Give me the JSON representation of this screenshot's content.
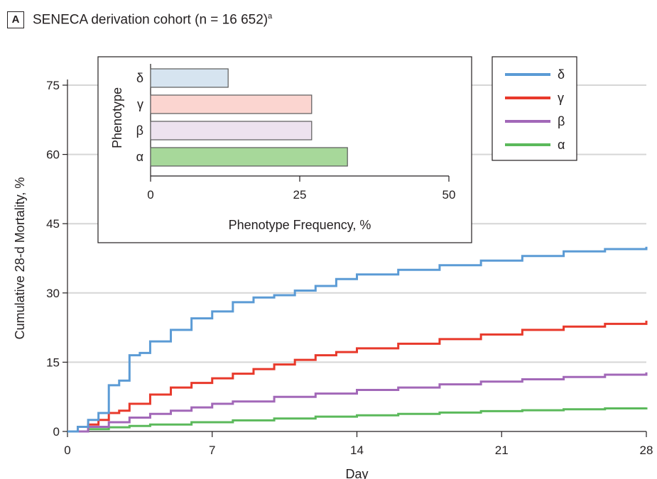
{
  "panel": {
    "letter": "A",
    "title": "SENECA derivation cohort (n = 16 652)",
    "title_sup": "a"
  },
  "chart_data": [
    {
      "type": "line",
      "title": "SENECA derivation cohort (n = 16 652)",
      "xlabel": "Day",
      "ylabel": "Cumulative 28-d Mortality, %",
      "xlim": [
        0,
        28
      ],
      "ylim": [
        0,
        75
      ],
      "xticks": [
        "0",
        "7",
        "14",
        "21",
        "28"
      ],
      "yticks": [
        "0",
        "15",
        "30",
        "45",
        "60",
        "75"
      ],
      "grid": "horizontal",
      "legend_position": "top-right",
      "series": [
        {
          "name": "δ",
          "color": "#5b9bd5",
          "x": [
            0,
            0.5,
            1,
            1.5,
            2,
            2.5,
            3,
            3.5,
            4,
            5,
            6,
            7,
            8,
            9,
            10,
            11,
            12,
            13,
            14,
            16,
            18,
            20,
            22,
            24,
            26,
            28
          ],
          "y": [
            0,
            1,
            2.5,
            4,
            10,
            11,
            16.5,
            17,
            19.5,
            22,
            24.5,
            26,
            28,
            29,
            29.5,
            30.5,
            31.5,
            33,
            34,
            35,
            36,
            37,
            38,
            39,
            39.5,
            40
          ]
        },
        {
          "name": "γ",
          "color": "#e8392b",
          "x": [
            0,
            0.5,
            1,
            1.5,
            2,
            2.5,
            3,
            4,
            5,
            6,
            7,
            8,
            9,
            10,
            11,
            12,
            13,
            14,
            16,
            18,
            20,
            22,
            24,
            26,
            28
          ],
          "y": [
            0,
            1,
            1.5,
            2.5,
            4,
            4.5,
            6,
            8,
            9.5,
            10.5,
            11.5,
            12.5,
            13.5,
            14.5,
            15.5,
            16.5,
            17.2,
            18,
            19,
            20,
            21,
            22,
            22.7,
            23.3,
            24
          ]
        },
        {
          "name": "β",
          "color": "#a268b8",
          "x": [
            0,
            1,
            2,
            3,
            4,
            5,
            6,
            7,
            8,
            10,
            12,
            14,
            16,
            18,
            20,
            22,
            24,
            26,
            28
          ],
          "y": [
            0,
            1,
            2,
            3,
            3.8,
            4.5,
            5.2,
            6,
            6.5,
            7.5,
            8.2,
            9,
            9.5,
            10.2,
            10.8,
            11.3,
            11.8,
            12.3,
            12.8
          ]
        },
        {
          "name": "α",
          "color": "#5bb95b",
          "x": [
            0,
            1,
            2,
            3,
            4,
            6,
            8,
            10,
            12,
            14,
            16,
            18,
            20,
            22,
            24,
            26,
            28
          ],
          "y": [
            0,
            0.5,
            0.9,
            1.2,
            1.5,
            2,
            2.4,
            2.8,
            3.2,
            3.5,
            3.8,
            4.1,
            4.4,
            4.6,
            4.8,
            5,
            5.2
          ]
        }
      ]
    },
    {
      "type": "bar",
      "orientation": "horizontal",
      "xlabel": "Phenotype Frequency, %",
      "ylabel": "Phenotype",
      "xlim": [
        0,
        50
      ],
      "xticks": [
        "0",
        "25",
        "50"
      ],
      "categories": [
        "δ",
        "γ",
        "β",
        "α"
      ],
      "values": [
        13,
        27,
        27,
        33
      ],
      "colors": [
        "#d6e4f0",
        "#fbd5d0",
        "#ede2ef",
        "#a7d89a"
      ]
    }
  ]
}
